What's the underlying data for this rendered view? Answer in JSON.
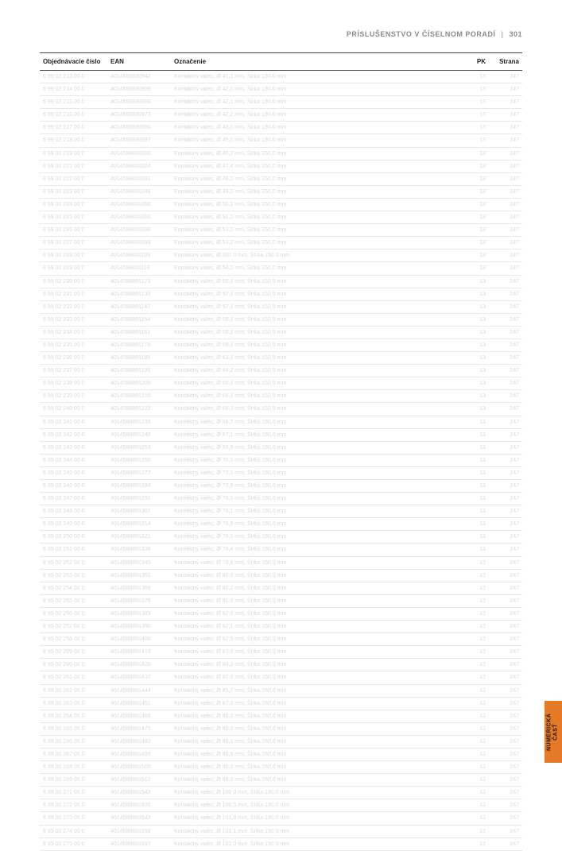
{
  "header": {
    "title": "PRÍSLUŠENSTVO V ČÍSELNOM PORADÍ",
    "page_number": "301"
  },
  "side_tab": {
    "label": "NUMERICKÁ\nČASŤ"
  },
  "columns": {
    "obj": "Objednávacie číslo",
    "ean": "EAN",
    "ozn": "Označenie",
    "pk": "PK",
    "strana": "Strana"
  },
  "rows": [
    {
      "obj": "6 99 02 213 00 0",
      "ean": "4014586890942",
      "ozn": "Kontaktný valec, Ø 41,3 mm, Šírka 150,0 mm",
      "pk": "13",
      "strana": "247"
    },
    {
      "obj": "6 99 02 214 00 0",
      "ean": "4014586890959",
      "ozn": "Kontaktný valec, Ø 42,0 mm, Šírka 150,0 mm",
      "pk": "13",
      "strana": "247"
    },
    {
      "obj": "6 99 02 215 00 0",
      "ean": "4014586890966",
      "ozn": "Kontaktný valec, Ø 42,1 mm, Šírka 150,0 mm",
      "pk": "13",
      "strana": "247"
    },
    {
      "obj": "6 99 02 216 00 0",
      "ean": "4014586890973",
      "ozn": "Kontaktný valec, Ø 42,2 mm, Šírka 150,0 mm",
      "pk": "13",
      "strana": "247"
    },
    {
      "obj": "6 99 02 217 00 0",
      "ean": "4014586890980",
      "ozn": "Kontaktný valec, Ø 43,0 mm, Šírka 150,0 mm",
      "pk": "13",
      "strana": "247"
    },
    {
      "obj": "6 99 02 218 00 0",
      "ean": "4014586890997",
      "ozn": "Kontaktný valec, Ø 45,0 mm, Šírka 150,0 mm",
      "pk": "13",
      "strana": "247"
    },
    {
      "obj": "6 99 02 219 00 0",
      "ean": "4014586891000",
      "ozn": "Kontaktný valec, Ø 45,7 mm, Šírka 150,0 mm",
      "pk": "13",
      "strana": "247"
    },
    {
      "obj": "6 99 02 221 00 0",
      "ean": "4014586891024",
      "ozn": "Kontaktný valec, Ø 47,4 mm, Šírka 150,0 mm",
      "pk": "13",
      "strana": "247"
    },
    {
      "obj": "6 99 02 222 00 0",
      "ean": "4014586891031",
      "ozn": "Kontaktný valec, Ø 48,0 mm, Šírka 150,0 mm",
      "pk": "13",
      "strana": "247"
    },
    {
      "obj": "6 99 02 223 00 0",
      "ean": "4014586891048",
      "ozn": "Kontaktný valec, Ø 49,0 mm, Šírka 150,0 mm",
      "pk": "13",
      "strana": "247"
    },
    {
      "obj": "6 99 02 224 00 0",
      "ean": "4014586891055",
      "ozn": "Kontaktný valec, Ø 50,1 mm, Šírka 150,0 mm",
      "pk": "13",
      "strana": "247"
    },
    {
      "obj": "6 99 02 225 00 0",
      "ean": "4014586891062",
      "ozn": "Kontaktný valec, Ø 51,0 mm, Šírka 150,0 mm",
      "pk": "13",
      "strana": "247"
    },
    {
      "obj": "6 99 02 226 00 0",
      "ean": "4014586891086",
      "ozn": "Kontaktný valec, Ø 53,0 mm, Šírka 150,0 mm",
      "pk": "13",
      "strana": "247"
    },
    {
      "obj": "6 99 02 227 00 0",
      "ean": "4014586891093",
      "ozn": "Kontaktný valec, Ø 53,2 mm, Šírka 150,0 mm",
      "pk": "13",
      "strana": "247"
    },
    {
      "obj": "6 99 02 228 00 0",
      "ean": "4014586891109",
      "ozn": "Kontaktný valec, Ø 107,0 mm, Šírka 150,0 mm",
      "pk": "13",
      "strana": "247"
    },
    {
      "obj": "6 99 02 229 00 0",
      "ean": "4014586891116",
      "ozn": "Kontaktný valec, Ø 54,0 mm, Šírka 150,0 mm",
      "pk": "13",
      "strana": "247"
    },
    {
      "obj": "6 99 02 230 00 0",
      "ean": "4014586891123",
      "ozn": "Kontaktný valec, Ø 55,0 mm, Šírka 150,0 mm",
      "pk": "13",
      "strana": "247"
    },
    {
      "obj": "6 99 02 231 00 0",
      "ean": "4014586891130",
      "ozn": "Kontaktný valec, Ø 57,0 mm, Šírka 150,0 mm",
      "pk": "13",
      "strana": "247"
    },
    {
      "obj": "6 99 02 232 00 0",
      "ean": "4014586891147",
      "ozn": "Kontaktný valec, Ø 57,6 mm, Šírka 150,0 mm",
      "pk": "13",
      "strana": "247"
    },
    {
      "obj": "6 99 02 233 00 0",
      "ean": "4014586891154",
      "ozn": "Kontaktný valec, Ø 58,0 mm, Šírka 150,0 mm",
      "pk": "13",
      "strana": "247"
    },
    {
      "obj": "6 99 02 234 00 0",
      "ean": "4014586891161",
      "ozn": "Kontaktný valec, Ø 58,5 mm, Šírka 150,0 mm",
      "pk": "13",
      "strana": "247"
    },
    {
      "obj": "6 99 02 235 00 0",
      "ean": "4014586891178",
      "ozn": "Kontaktný valec, Ø 59,0 mm, Šírka 150,0 mm",
      "pk": "13",
      "strana": "247"
    },
    {
      "obj": "6 99 02 236 00 0",
      "ean": "4014586891185",
      "ozn": "Kontaktný valec, Ø 63,0 mm, Šírka 150,0 mm",
      "pk": "13",
      "strana": "247"
    },
    {
      "obj": "6 99 02 237 00 0",
      "ean": "4014586891195",
      "ozn": "Kontaktný valec, Ø 64,2 mm, Šírka 150,0 mm",
      "pk": "13",
      "strana": "247"
    },
    {
      "obj": "6 99 02 238 00 0",
      "ean": "4014586891208",
      "ozn": "Kontaktný valec, Ø 65,0 mm, Šírka 150,0 mm",
      "pk": "13",
      "strana": "247"
    },
    {
      "obj": "6 99 02 239 00 0",
      "ean": "4014586891215",
      "ozn": "Kontaktný valec, Ø 66,0 mm, Šírka 150,0 mm",
      "pk": "13",
      "strana": "247"
    },
    {
      "obj": "6 99 02 240 00 0",
      "ean": "4014586891222",
      "ozn": "Kontaktný valec, Ø 66,3 mm, Šírka 150,0 mm",
      "pk": "13",
      "strana": "247"
    },
    {
      "obj": "6 99 02 241 00 0",
      "ean": "4014586891239",
      "ozn": "Kontaktný valec, Ø 66,7 mm, Šírka 150,0 mm",
      "pk": "13",
      "strana": "247"
    },
    {
      "obj": "6 99 02 242 00 0",
      "ean": "4014586891246",
      "ozn": "Kontaktný valec, Ø 67,1 mm, Šírka 150,0 mm",
      "pk": "13",
      "strana": "247"
    },
    {
      "obj": "6 99 02 243 00 0",
      "ean": "4014586891253",
      "ozn": "Kontaktný valec, Ø 69,9 mm, Šírka 150,0 mm",
      "pk": "13",
      "strana": "247"
    },
    {
      "obj": "6 99 02 244 00 0",
      "ean": "4014586891260",
      "ozn": "Kontaktný valec, Ø 70,0 mm, Šírka 150,0 mm",
      "pk": "13",
      "strana": "247"
    },
    {
      "obj": "6 99 02 245 00 0",
      "ean": "4014586891277",
      "ozn": "Kontaktný valec, Ø 73,0 mm, Šírka 150,0 mm",
      "pk": "13",
      "strana": "247"
    },
    {
      "obj": "6 99 02 246 00 0",
      "ean": "4014586891284",
      "ozn": "Kontaktný valec, Ø 73,6 mm, Šírka 150,0 mm",
      "pk": "13",
      "strana": "247"
    },
    {
      "obj": "6 99 02 247 00 0",
      "ean": "4014586891291",
      "ozn": "Kontaktný valec, Ø 76,0 mm, Šírka 150,0 mm",
      "pk": "13",
      "strana": "247"
    },
    {
      "obj": "6 99 02 248 00 0",
      "ean": "4014586891307",
      "ozn": "Kontaktný valec, Ø 76,1 mm, Šírka 150,0 mm",
      "pk": "13",
      "strana": "247"
    },
    {
      "obj": "6 99 02 249 00 0",
      "ean": "4014586891314",
      "ozn": "Kontaktný valec, Ø 76,6 mm, Šírka 150,0 mm",
      "pk": "13",
      "strana": "247"
    },
    {
      "obj": "6 99 02 250 00 0",
      "ean": "4014586891321",
      "ozn": "Kontaktný valec, Ø 79,0 mm, Šírka 150,0 mm",
      "pk": "13",
      "strana": "247"
    },
    {
      "obj": "6 99 02 251 00 0",
      "ean": "4014586891338",
      "ozn": "Kontaktný valec, Ø 79,4 mm, Šírka 150,0 mm",
      "pk": "13",
      "strana": "247"
    },
    {
      "obj": "6 99 02 252 00 0",
      "ean": "4014586891345",
      "ozn": "Kontaktný valec, Ø 79,8 mm, Šírka 150,0 mm",
      "pk": "13",
      "strana": "247"
    },
    {
      "obj": "6 99 02 253 00 0",
      "ean": "4014586891352",
      "ozn": "Kontaktný valec, Ø 80,0 mm, Šírka 150,0 mm",
      "pk": "13",
      "strana": "247"
    },
    {
      "obj": "6 99 02 254 00 0",
      "ean": "4014586891369",
      "ozn": "Kontaktný valec, Ø 80,2 mm, Šírka 150,0 mm",
      "pk": "13",
      "strana": "247"
    },
    {
      "obj": "6 99 02 255 00 0",
      "ean": "4014586891376",
      "ozn": "Kontaktný valec, Ø 81,0 mm, Šírka 150,0 mm",
      "pk": "13",
      "strana": "247"
    },
    {
      "obj": "6 99 02 256 00 0",
      "ean": "4014586891383",
      "ozn": "Kontaktný valec, Ø 82,0 mm, Šírka 150,0 mm",
      "pk": "13",
      "strana": "247"
    },
    {
      "obj": "6 99 02 257 00 0",
      "ean": "4014586891390",
      "ozn": "Kontaktný valec, Ø 82,1 mm, Šírka 150,0 mm",
      "pk": "13",
      "strana": "247"
    },
    {
      "obj": "6 99 02 258 00 0",
      "ean": "4014586891406",
      "ozn": "Kontaktný valec, Ø 82,9 mm, Šírka 150,0 mm",
      "pk": "13",
      "strana": "247"
    },
    {
      "obj": "6 99 02 259 00 0",
      "ean": "4014586891413",
      "ozn": "Kontaktný valec, Ø 83,0 mm, Šírka 150,0 mm",
      "pk": "13",
      "strana": "247"
    },
    {
      "obj": "6 99 02 260 00 0",
      "ean": "4014586891420",
      "ozn": "Kontaktný valec, Ø 84,3 mm, Šírka 150,0 mm",
      "pk": "13",
      "strana": "247"
    },
    {
      "obj": "6 99 02 261 00 0",
      "ean": "4014586891437",
      "ozn": "Kontaktný valec, Ø 85,0 mm, Šírka 150,0 mm",
      "pk": "13",
      "strana": "247"
    },
    {
      "obj": "6 99 02 262 00 0",
      "ean": "4014586891444",
      "ozn": "Kontaktný valec, Ø 85,7 mm, Šírka 150,0 mm",
      "pk": "13",
      "strana": "247"
    },
    {
      "obj": "6 99 02 263 00 0",
      "ean": "4014586891451",
      "ozn": "Kontaktný valec, Ø 87,0 mm, Šírka 150,0 mm",
      "pk": "13",
      "strana": "247"
    },
    {
      "obj": "6 99 02 264 00 0",
      "ean": "4014586891468",
      "ozn": "Kontaktný valec, Ø 88,0 mm, Šírka 150,0 mm",
      "pk": "13",
      "strana": "247"
    },
    {
      "obj": "6 99 02 265 00 0",
      "ean": "4014586891475",
      "ozn": "Kontaktný valec, Ø 86,0 mm, Šírka 150,0 mm",
      "pk": "13",
      "strana": "247"
    },
    {
      "obj": "6 99 02 266 00 0",
      "ean": "4014586891482",
      "ozn": "Kontaktný valec, Ø 88,3 mm, Šírka 150,0 mm",
      "pk": "13",
      "strana": "247"
    },
    {
      "obj": "6 99 02 267 00 0",
      "ean": "4014586891499",
      "ozn": "Kontaktný valec, Ø 88,9 mm, Šírka 150,0 mm",
      "pk": "13",
      "strana": "247"
    },
    {
      "obj": "6 99 02 268 00 0",
      "ean": "4014586891505",
      "ozn": "Kontaktný valec, Ø 90,0 mm, Šírka 150,0 mm",
      "pk": "13",
      "strana": "247"
    },
    {
      "obj": "6 99 02 269 00 0",
      "ean": "4014586891512",
      "ozn": "Kontaktný valec, Ø 98,0 mm, Šírka 150,0 mm",
      "pk": "13",
      "strana": "247"
    },
    {
      "obj": "6 99 02 271 00 0",
      "ean": "4014586891543",
      "ozn": "Kontaktný valec, Ø 100,0 mm, Šírka 150,0 mm",
      "pk": "13",
      "strana": "247"
    },
    {
      "obj": "6 99 02 272 00 0",
      "ean": "4014586891635",
      "ozn": "Kontaktný valec, Ø 100,5 mm, Šírka 150,0 mm",
      "pk": "13",
      "strana": "247"
    },
    {
      "obj": "6 99 02 273 00 0",
      "ean": "4014586891642",
      "ozn": "Kontaktný valec, Ø 101,0 mm, Šírka 150,0 mm",
      "pk": "13",
      "strana": "247"
    },
    {
      "obj": "6 99 02 274 00 0",
      "ean": "4014586891659",
      "ozn": "Kontaktný valec, Ø 101,1 mm, Šírka 150,0 mm",
      "pk": "13",
      "strana": "247"
    },
    {
      "obj": "6 99 02 275 00 0",
      "ean": "4014586891697",
      "ozn": "Kontaktný valec, Ø 102,0 mm, Šírka 150,0 mm",
      "pk": "13",
      "strana": "247"
    }
  ]
}
